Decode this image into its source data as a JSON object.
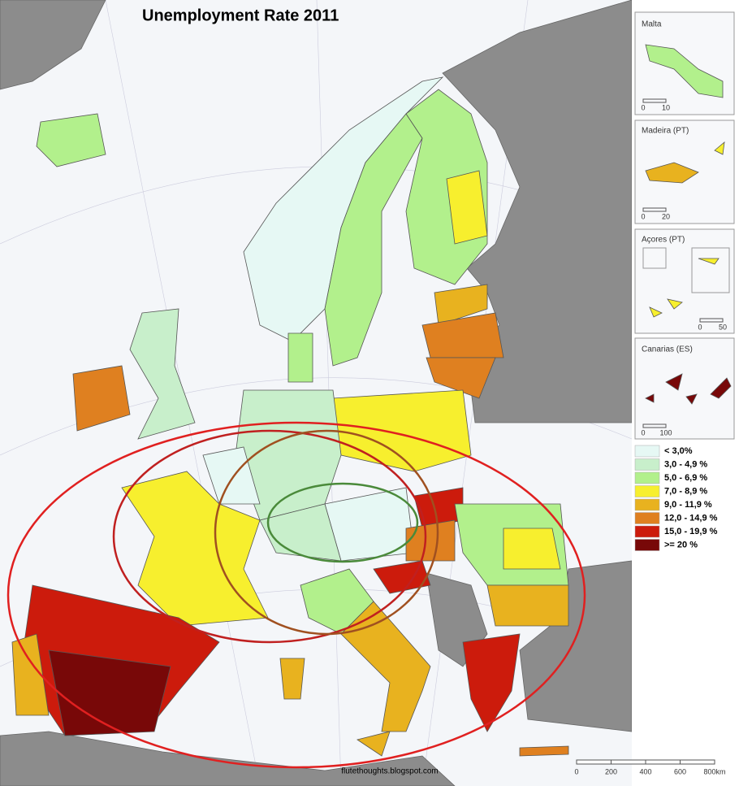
{
  "title": "Unemployment Rate 2011",
  "insets": [
    {
      "label": "Malta",
      "scale": [
        "0",
        "10"
      ]
    },
    {
      "label": "Madeira (PT)",
      "scale": [
        "0",
        "20"
      ]
    },
    {
      "label": "Açores (PT)",
      "scale": [
        "0",
        "50"
      ]
    },
    {
      "label": "Canarias (ES)",
      "scale": [
        "0",
        "100"
      ]
    }
  ],
  "legend": [
    {
      "label": "< 3,0%",
      "color": "#e6f8f4"
    },
    {
      "label": "3,0 - 4,9 %",
      "color": "#c8efcb"
    },
    {
      "label": "5,0 - 6,9 %",
      "color": "#b2f08c"
    },
    {
      "label": "7,0 - 8,9 %",
      "color": "#f7ef2e"
    },
    {
      "label": "9,0 - 11,9 %",
      "color": "#e8b21f"
    },
    {
      "label": "12,0 - 14,9 %",
      "color": "#df8020"
    },
    {
      "label": "15,0 - 19,9 %",
      "color": "#cc1b0c"
    },
    {
      "label": ">= 20 %",
      "color": "#780808"
    }
  ],
  "scale_bar": [
    "0",
    "200",
    "400",
    "600",
    "800km"
  ],
  "credit": "flutethoughts.blogspot.com"
}
